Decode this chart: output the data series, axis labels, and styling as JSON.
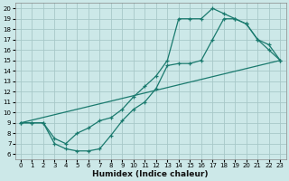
{
  "title": "",
  "xlabel": "Humidex (Indice chaleur)",
  "bg_color": "#cce8e8",
  "line_color": "#1a7a6e",
  "grid_color": "#a8c8c8",
  "xlim": [
    -0.5,
    23.5
  ],
  "ylim": [
    5.5,
    20.5
  ],
  "xticks": [
    0,
    1,
    2,
    3,
    4,
    5,
    6,
    7,
    8,
    9,
    10,
    11,
    12,
    13,
    14,
    15,
    16,
    17,
    18,
    19,
    20,
    21,
    22,
    23
  ],
  "yticks": [
    6,
    7,
    8,
    9,
    10,
    11,
    12,
    13,
    14,
    15,
    16,
    17,
    18,
    19,
    20
  ],
  "line1_x": [
    0,
    1,
    2,
    3,
    4,
    5,
    6,
    7,
    8,
    9,
    10,
    11,
    12,
    13,
    14,
    15,
    16,
    17,
    18,
    19,
    20,
    21,
    22,
    23
  ],
  "line1_y": [
    9,
    9,
    9,
    7,
    6.5,
    6.3,
    6.3,
    6.5,
    7.8,
    9.2,
    10.3,
    11.0,
    12.3,
    14.5,
    14.7,
    14.7,
    15.0,
    17.0,
    19.0,
    19.0,
    18.5,
    17.0,
    16.0,
    15.0
  ],
  "line2_x": [
    0,
    1,
    2,
    3,
    4,
    5,
    6,
    7,
    8,
    9,
    10,
    11,
    12,
    13,
    14,
    15,
    16,
    17,
    18,
    19,
    20,
    21,
    22,
    23
  ],
  "line2_y": [
    9,
    9,
    9,
    7.5,
    7.0,
    8.0,
    8.5,
    9.2,
    9.5,
    10.3,
    11.5,
    12.5,
    13.5,
    15.0,
    19.0,
    19.0,
    19.0,
    20.0,
    19.5,
    19.0,
    18.5,
    17.0,
    16.5,
    15.0
  ],
  "line3_x": [
    0,
    23
  ],
  "line3_y": [
    9,
    15.0
  ]
}
